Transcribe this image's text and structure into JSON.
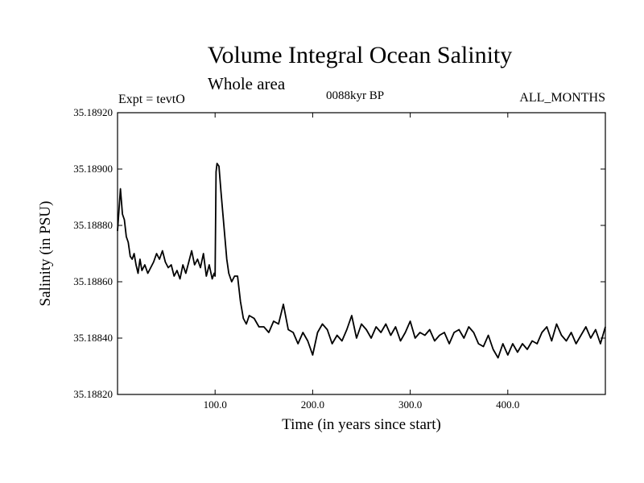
{
  "header": {
    "title": "Volume Integral Ocean Salinity",
    "subtitle": "Whole area",
    "experiment": "Expt = tevtO",
    "period": "0088kyr BP",
    "months": "ALL_MONTHS"
  },
  "chart_data": {
    "type": "line",
    "title": "Volume Integral Ocean Salinity",
    "subtitle": "Whole area",
    "xlabel": "Time (in years since start)",
    "ylabel": "Salinity (in PSU)",
    "xlim": [
      0,
      500
    ],
    "ylim": [
      35.1882,
      35.1892
    ],
    "x_ticks": [
      100,
      200,
      300,
      400
    ],
    "x_tick_labels": [
      "100.0",
      "200.0",
      "300.0",
      "400.0"
    ],
    "y_ticks": [
      35.1882,
      35.1884,
      35.1886,
      35.1888,
      35.189,
      35.1892
    ],
    "y_tick_labels": [
      "35.18820",
      "35.18840",
      "35.18860",
      "35.18880",
      "35.18900",
      "35.18920"
    ],
    "grid": false,
    "legend": "none",
    "line_color": "#000000",
    "series": [
      {
        "x": [
          0,
          2,
          3,
          5,
          7,
          9,
          11,
          13,
          15,
          17,
          19,
          21,
          23,
          25,
          28,
          31,
          34,
          37,
          40,
          43,
          46,
          49,
          52,
          55,
          58,
          61,
          64,
          67,
          70,
          73,
          76,
          79,
          82,
          85,
          88,
          91,
          94,
          97,
          99,
          100,
          101,
          102,
          104,
          106,
          108,
          110,
          112,
          114,
          117,
          120,
          123,
          126,
          129,
          132,
          135,
          140,
          145,
          150,
          155,
          160,
          165,
          170,
          175,
          180,
          185,
          190,
          195,
          200,
          205,
          210,
          215,
          220,
          225,
          230,
          235,
          240,
          245,
          250,
          255,
          260,
          265,
          270,
          275,
          280,
          285,
          290,
          295,
          300,
          305,
          310,
          315,
          320,
          325,
          330,
          335,
          340,
          345,
          350,
          355,
          360,
          365,
          370,
          375,
          380,
          385,
          390,
          395,
          400,
          405,
          410,
          415,
          420,
          425,
          430,
          435,
          440,
          445,
          450,
          455,
          460,
          465,
          470,
          475,
          480,
          485,
          490,
          495,
          500
        ],
        "y": [
          35.18878,
          35.18888,
          35.18893,
          35.18884,
          35.18882,
          35.18876,
          35.18874,
          35.18869,
          35.18868,
          35.1887,
          35.18866,
          35.18863,
          35.18868,
          35.18864,
          35.18866,
          35.18863,
          35.18865,
          35.18867,
          35.1887,
          35.18868,
          35.18871,
          35.18867,
          35.18865,
          35.18866,
          35.18862,
          35.18864,
          35.18861,
          35.18866,
          35.18863,
          35.18867,
          35.18871,
          35.18866,
          35.18868,
          35.18865,
          35.1887,
          35.18862,
          35.18866,
          35.18861,
          35.18863,
          35.18862,
          35.18899,
          35.18902,
          35.18901,
          35.18892,
          35.18884,
          35.18876,
          35.18868,
          35.18863,
          35.1886,
          35.18862,
          35.18862,
          35.18853,
          35.18847,
          35.18845,
          35.18848,
          35.18847,
          35.18844,
          35.18844,
          35.18842,
          35.18846,
          35.18845,
          35.18852,
          35.18843,
          35.18842,
          35.18838,
          35.18842,
          35.18839,
          35.18834,
          35.18842,
          35.18845,
          35.18843,
          35.18838,
          35.18841,
          35.18839,
          35.18843,
          35.18848,
          35.1884,
          35.18845,
          35.18843,
          35.1884,
          35.18844,
          35.18842,
          35.18845,
          35.18841,
          35.18844,
          35.18839,
          35.18842,
          35.18846,
          35.1884,
          35.18842,
          35.18841,
          35.18843,
          35.18839,
          35.18841,
          35.18842,
          35.18838,
          35.18842,
          35.18843,
          35.1884,
          35.18844,
          35.18842,
          35.18838,
          35.18837,
          35.18841,
          35.18836,
          35.18833,
          35.18838,
          35.18834,
          35.18838,
          35.18835,
          35.18838,
          35.18836,
          35.18839,
          35.18838,
          35.18842,
          35.18844,
          35.18839,
          35.18845,
          35.18841,
          35.18839,
          35.18842,
          35.18838,
          35.18841,
          35.18844,
          35.1884,
          35.18843,
          35.18838,
          35.18844
        ]
      }
    ]
  }
}
